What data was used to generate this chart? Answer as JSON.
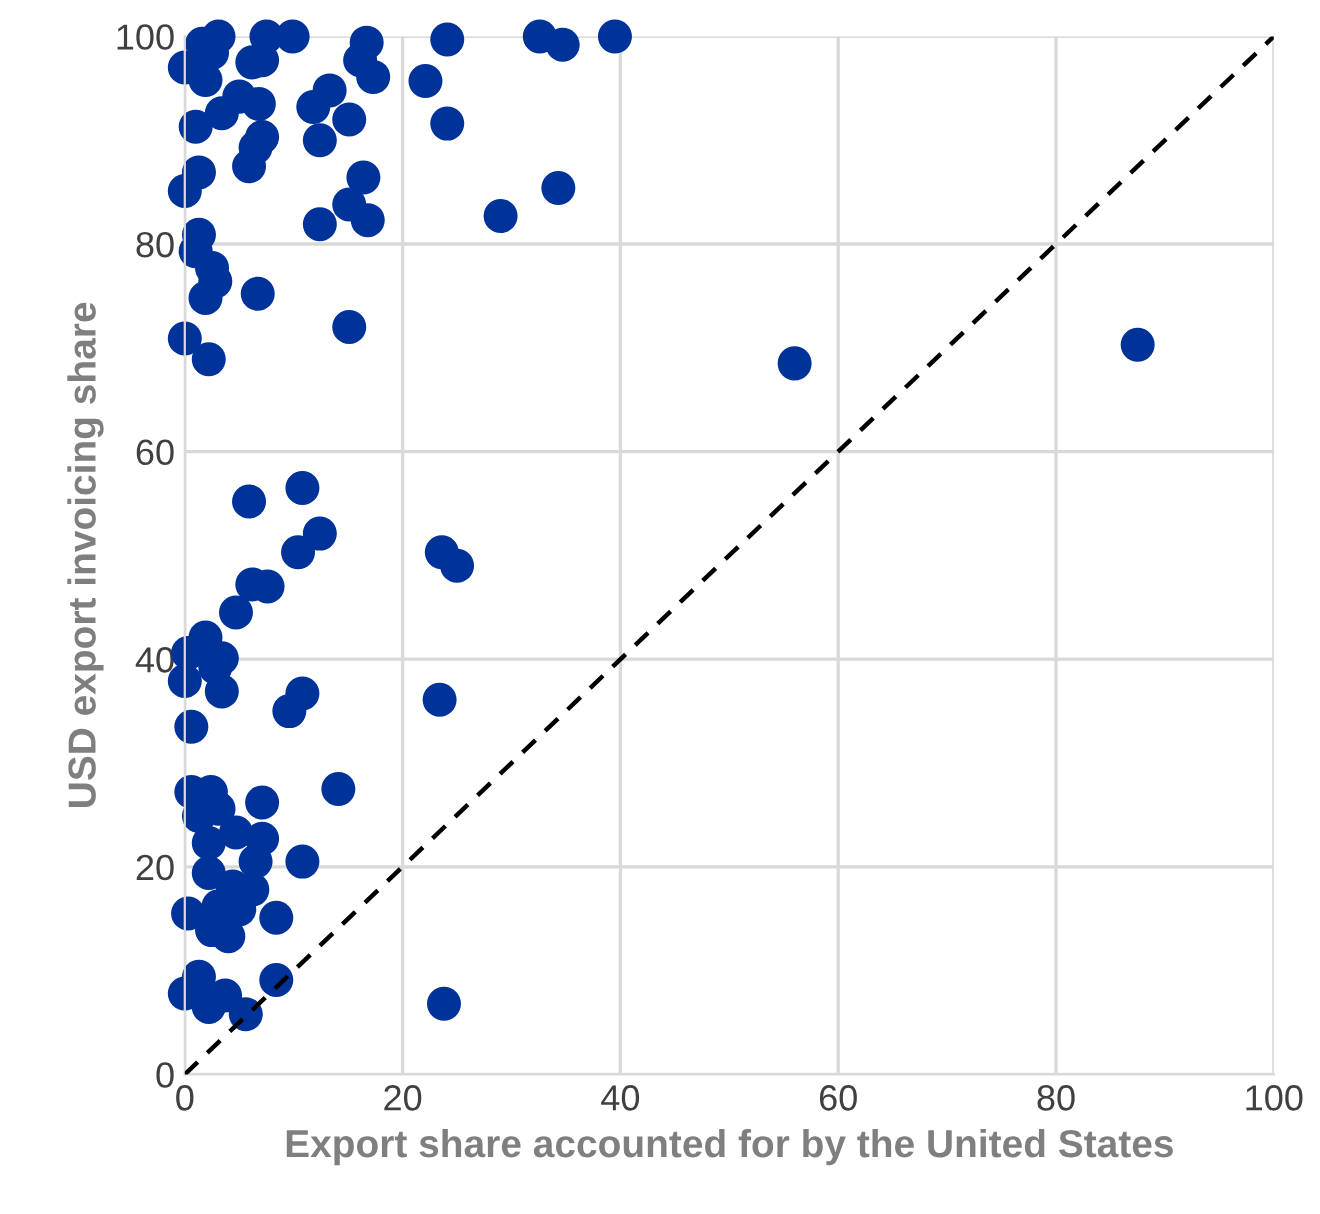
{
  "chart_data": {
    "type": "scatter",
    "xlabel": "Export share accounted for by the United States",
    "ylabel": "USD export invoicing share",
    "xlim": [
      0,
      100
    ],
    "ylim": [
      0,
      100
    ],
    "xticks": [
      0,
      20,
      40,
      60,
      80,
      100
    ],
    "yticks": [
      0,
      20,
      40,
      60,
      80,
      100
    ],
    "grid": true,
    "legend": false,
    "series": [
      {
        "color": "#003399",
        "marker": "circle",
        "x": [
          3.1,
          1.6,
          0,
          1.9,
          2.5,
          7.5,
          9.9,
          6.2,
          7.1,
          5,
          6.8,
          3.4,
          1,
          7.1,
          6.5,
          5.9,
          1.3,
          0,
          11.8,
          13.3,
          12.4,
          15.1,
          16.7,
          16.1,
          17.3,
          16.4,
          15.1,
          16.8,
          12.4,
          24.1,
          22.1,
          24.1,
          29,
          34.3,
          32.6,
          34.7,
          39.5,
          1.3,
          1,
          2.5,
          2.8,
          1.9,
          6.7,
          0,
          2.2,
          15.1,
          87.5,
          56,
          5.9,
          10.8,
          12.4,
          10.4,
          23.6,
          25,
          6.2,
          7.6,
          4.7,
          1.9,
          0.3,
          3.4,
          2.8,
          0,
          3.4,
          10.8,
          9.6,
          23.4,
          0.6,
          0.6,
          2.4,
          1.3,
          3.1,
          7.1,
          14.1,
          2.2,
          4.7,
          7.1,
          2.2,
          6.5,
          10.8,
          4.4,
          6.2,
          0.3,
          3.1,
          5,
          8.4,
          2.5,
          4,
          0,
          1.3,
          2.2,
          3.7,
          5.6,
          8.4,
          23.8
        ],
        "values": [
          100,
          99.3,
          97,
          95.8,
          98.4,
          100,
          100,
          97.5,
          97.7,
          94.2,
          93.5,
          92.6,
          91.3,
          90.3,
          89.3,
          87.5,
          86.9,
          85.1,
          93.2,
          94.8,
          90,
          92,
          99.4,
          97.7,
          96.1,
          86.4,
          83.8,
          82.3,
          81.9,
          99.7,
          95.7,
          91.6,
          82.7,
          85.4,
          100,
          99.2,
          100,
          80.9,
          79.3,
          77.7,
          76.4,
          74.8,
          75.2,
          70.9,
          68.9,
          72,
          70.3,
          68.5,
          55.2,
          56.5,
          52.1,
          50.3,
          50.3,
          49,
          47.2,
          47,
          44.5,
          42.1,
          40.6,
          40.1,
          39.2,
          37.9,
          36.9,
          36.7,
          35,
          36.1,
          33.5,
          27.2,
          27.2,
          24.9,
          25.6,
          26.2,
          27.5,
          22.3,
          23.3,
          22.7,
          19.4,
          20.5,
          20.5,
          18.1,
          17.8,
          15.5,
          16.2,
          15.9,
          15.1,
          13.9,
          13.3,
          7.8,
          9.4,
          6.5,
          7.6,
          5.8,
          9.1,
          6.8
        ]
      },
      {
        "type": "line",
        "color": "#000000",
        "line_style": "dashed",
        "marker": "none",
        "x": [
          0,
          100
        ],
        "values": [
          0,
          100
        ]
      }
    ]
  }
}
